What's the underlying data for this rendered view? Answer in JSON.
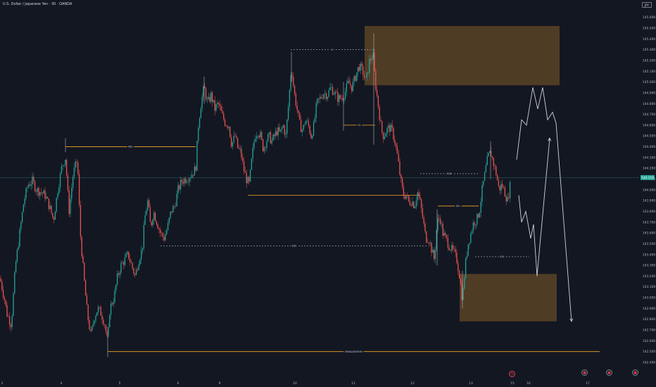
{
  "header": {
    "title": "U.S. Dollar / Japanese Yen · 30 · OANDA",
    "currency_button": "JPY"
  },
  "chart_data": {
    "type": "candlestick",
    "symbol": "USD/JPY",
    "timeframe": "30",
    "ylim": [
      142.38,
      145.62
    ],
    "y_ticks": [
      145.6,
      145.5,
      145.4,
      145.3,
      145.2,
      145.1,
      145.0,
      144.9,
      144.8,
      144.7,
      144.6,
      144.5,
      144.4,
      144.3,
      144.2,
      144.1,
      144.0,
      143.9,
      143.8,
      143.7,
      143.6,
      143.5,
      143.4,
      143.3,
      143.2,
      143.1,
      143.0,
      142.9,
      142.8,
      142.7,
      142.6,
      142.5,
      142.4
    ],
    "y_tick_labels": [
      "145.600",
      "145.500",
      "145.400",
      "145.300",
      "145.200",
      "145.100",
      "145.000",
      "144.900",
      "144.800",
      "144.700",
      "144.600",
      "144.500",
      "144.400",
      "144.300",
      "144.200",
      "144.100",
      "144.000",
      "143.900",
      "143.800",
      "143.700",
      "143.600",
      "143.500",
      "143.400",
      "143.300",
      "143.200",
      "143.100",
      "143.000",
      "142.900",
      "142.800",
      "142.700",
      "142.600",
      "142.500",
      "142.400"
    ],
    "x_ticks": [
      "2",
      "4",
      "5",
      "6",
      "9",
      "10",
      "11",
      "12",
      "13",
      "15",
      "16",
      "17"
    ],
    "current_price": "144.114",
    "last_price": 144.114,
    "colors": {
      "up": "#26a69a",
      "down": "#ef5350",
      "zone": "#5a4326",
      "level": "#f5a623",
      "projection": "#d1d4dc",
      "current": "#26a69a"
    },
    "path": [
      [
        0,
        143.18
      ],
      [
        6,
        143.0
      ],
      [
        10,
        142.85
      ],
      [
        16,
        142.75
      ],
      [
        22,
        143.3
      ],
      [
        28,
        143.6
      ],
      [
        34,
        143.9
      ],
      [
        40,
        144.05
      ],
      [
        46,
        144.08
      ],
      [
        52,
        144.0
      ],
      [
        58,
        143.98
      ],
      [
        64,
        143.95
      ],
      [
        70,
        143.85
      ],
      [
        76,
        143.72
      ],
      [
        82,
        144.0
      ],
      [
        88,
        144.22
      ],
      [
        93,
        144.3
      ],
      [
        98,
        143.8
      ],
      [
        104,
        144.15
      ],
      [
        110,
        144.28
      ],
      [
        114,
        143.6
      ],
      [
        119,
        143.2
      ],
      [
        124,
        142.85
      ],
      [
        129,
        142.65
      ],
      [
        134,
        142.82
      ],
      [
        139,
        142.9
      ],
      [
        144,
        142.85
      ],
      [
        149,
        142.75
      ],
      [
        153,
        142.58
      ],
      [
        156,
        142.9
      ],
      [
        162,
        143.0
      ],
      [
        167,
        143.2
      ],
      [
        172,
        143.3
      ],
      [
        177,
        143.35
      ],
      [
        182,
        143.4
      ],
      [
        187,
        143.3
      ],
      [
        192,
        143.2
      ],
      [
        197,
        143.35
      ],
      [
        202,
        143.45
      ],
      [
        206,
        143.75
      ],
      [
        210,
        143.9
      ],
      [
        214,
        143.65
      ],
      [
        218,
        143.8
      ],
      [
        222,
        143.72
      ],
      [
        228,
        143.6
      ],
      [
        233,
        143.55
      ],
      [
        238,
        143.65
      ],
      [
        243,
        143.8
      ],
      [
        248,
        143.85
      ],
      [
        253,
        144.0
      ],
      [
        258,
        144.08
      ],
      [
        263,
        144.1
      ],
      [
        268,
        144.12
      ],
      [
        273,
        144.15
      ],
      [
        278,
        144.2
      ],
      [
        282,
        144.62
      ],
      [
        286,
        144.82
      ],
      [
        290,
        144.95
      ],
      [
        295,
        144.8
      ],
      [
        300,
        144.88
      ],
      [
        305,
        144.75
      ],
      [
        310,
        144.8
      ],
      [
        315,
        144.7
      ],
      [
        320,
        144.62
      ],
      [
        325,
        144.6
      ],
      [
        329,
        144.42
      ],
      [
        334,
        144.5
      ],
      [
        338,
        144.38
      ],
      [
        342,
        144.35
      ],
      [
        346,
        144.2
      ],
      [
        350,
        144.1
      ],
      [
        354,
        144.05
      ],
      [
        358,
        144.3
      ],
      [
        362,
        144.5
      ],
      [
        366,
        144.55
      ],
      [
        370,
        144.5
      ],
      [
        374,
        144.38
      ],
      [
        378,
        144.45
      ],
      [
        382,
        144.5
      ],
      [
        386,
        144.45
      ],
      [
        390,
        144.5
      ],
      [
        394,
        144.55
      ],
      [
        398,
        144.52
      ],
      [
        402,
        144.6
      ],
      [
        406,
        144.5
      ],
      [
        410,
        144.8
      ],
      [
        414,
        145.15
      ],
      [
        418,
        144.9
      ],
      [
        422,
        144.75
      ],
      [
        426,
        144.6
      ],
      [
        430,
        144.55
      ],
      [
        434,
        144.65
      ],
      [
        438,
        144.6
      ],
      [
        442,
        144.5
      ],
      [
        446,
        144.6
      ],
      [
        450,
        144.8
      ],
      [
        455,
        144.85
      ],
      [
        460,
        144.9
      ],
      [
        465,
        144.88
      ],
      [
        470,
        144.95
      ],
      [
        475,
        144.9
      ],
      [
        480,
        144.85
      ],
      [
        485,
        144.85
      ],
      [
        490,
        144.9
      ],
      [
        495,
        145.0
      ],
      [
        500,
        144.95
      ],
      [
        505,
        145.05
      ],
      [
        510,
        145.15
      ],
      [
        515,
        145.1
      ],
      [
        520,
        145.0
      ],
      [
        525,
        145.2
      ],
      [
        530,
        145.25
      ],
      [
        533,
        145.0
      ],
      [
        536,
        144.85
      ],
      [
        539,
        144.7
      ],
      [
        542,
        144.55
      ],
      [
        545,
        144.5
      ],
      [
        549,
        144.55
      ],
      [
        553,
        144.58
      ],
      [
        557,
        144.55
      ],
      [
        561,
        144.45
      ],
      [
        565,
        144.3
      ],
      [
        569,
        144.1
      ],
      [
        573,
        143.95
      ],
      [
        577,
        143.95
      ],
      [
        581,
        143.88
      ],
      [
        585,
        143.9
      ],
      [
        589,
        143.85
      ],
      [
        593,
        143.98
      ],
      [
        597,
        143.88
      ],
      [
        601,
        143.72
      ],
      [
        605,
        143.55
      ],
      [
        609,
        143.55
      ],
      [
        613,
        143.45
      ],
      [
        617,
        143.35
      ],
      [
        621,
        143.7
      ],
      [
        625,
        143.75
      ],
      [
        629,
        143.6
      ],
      [
        633,
        143.55
      ],
      [
        637,
        143.5
      ],
      [
        641,
        143.45
      ],
      [
        645,
        143.42
      ],
      [
        649,
        143.35
      ],
      [
        653,
        143.2
      ],
      [
        657,
        142.98
      ],
      [
        661,
        143.3
      ],
      [
        665,
        143.5
      ],
      [
        669,
        143.6
      ],
      [
        673,
        143.7
      ],
      [
        677,
        143.72
      ],
      [
        681,
        143.8
      ],
      [
        685,
        144.0
      ],
      [
        689,
        144.15
      ],
      [
        693,
        144.3
      ],
      [
        697,
        144.35
      ],
      [
        701,
        144.25
      ],
      [
        705,
        144.15
      ],
      [
        709,
        144.0
      ],
      [
        713,
        144.05
      ],
      [
        717,
        143.98
      ],
      [
        721,
        143.9
      ],
      [
        725,
        144.05
      ]
    ],
    "zones": [
      {
        "x1": 518,
        "x2": 795,
        "top": 145.52,
        "bottom": 144.97
      },
      {
        "x1": 653,
        "x2": 791,
        "top": 143.22,
        "bottom": 142.78
      }
    ],
    "levels": [
      {
        "x1": 93,
        "x2": 278,
        "y": 144.4,
        "style": "solid",
        "label": "BSL"
      },
      {
        "x1": 352,
        "x2": 597,
        "y": 143.95,
        "style": "solid",
        "label": ""
      },
      {
        "x1": 597,
        "x2": 680,
        "y": 144.15,
        "style": "dashed",
        "label": "EQH"
      },
      {
        "x1": 228,
        "x2": 608,
        "y": 143.48,
        "style": "dashed",
        "label": "EQL"
      },
      {
        "x1": 413,
        "x2": 530,
        "y": 145.3,
        "style": "dashed",
        "label": "H"
      },
      {
        "x1": 488,
        "x2": 533,
        "y": 144.6,
        "style": "solid",
        "label": "SL"
      },
      {
        "x1": 622,
        "x2": 680,
        "y": 143.85,
        "style": "solid",
        "label": "SFL"
      },
      {
        "x1": 675,
        "x2": 752,
        "y": 143.38,
        "style": "dashed",
        "label": "SSL"
      },
      {
        "x1": 153,
        "x2": 852,
        "y": 142.5,
        "style": "solid",
        "label": "INVALIDATION"
      }
    ],
    "projections": [
      [
        [
          734,
          144.28
        ],
        [
          741,
          144.65
        ],
        [
          748,
          144.6
        ],
        [
          757,
          144.95
        ],
        [
          764,
          144.75
        ],
        [
          771,
          144.95
        ],
        [
          778,
          144.65
        ],
        [
          785,
          144.72
        ],
        [
          790,
          144.62
        ],
        [
          812,
          142.78
        ]
      ],
      [
        [
          737,
          143.95
        ],
        [
          741,
          143.7
        ],
        [
          747,
          143.8
        ],
        [
          754,
          143.55
        ],
        [
          758,
          143.68
        ],
        [
          763,
          143.2
        ],
        [
          781,
          144.48
        ]
      ]
    ]
  }
}
